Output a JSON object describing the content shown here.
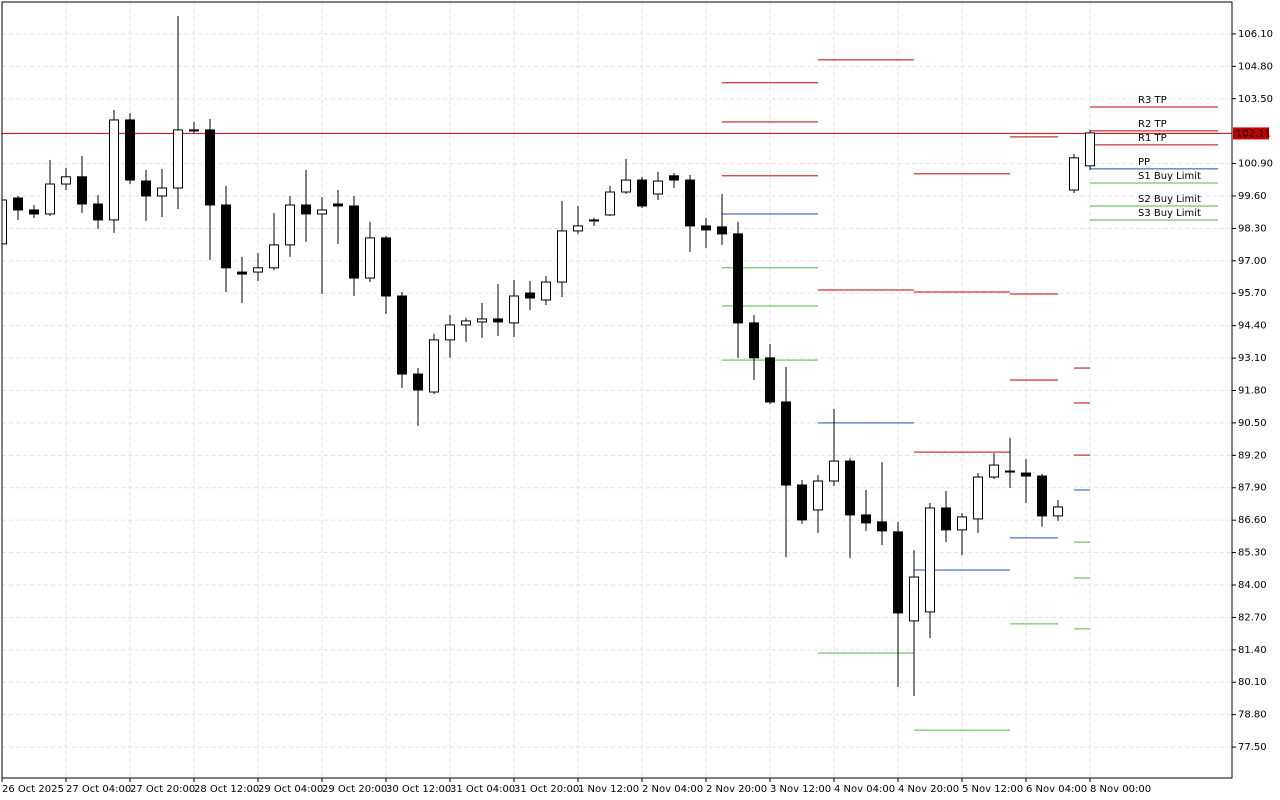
{
  "chart_data": {
    "type": "candlestick",
    "categories": [
      "26 Oct 2025",
      null,
      null,
      null,
      "27 Oct 04:00",
      null,
      null,
      null,
      "27 Oct 20:00",
      null,
      null,
      null,
      "28 Oct 12:00",
      null,
      null,
      null,
      "29 Oct 04:00",
      null,
      null,
      null,
      "29 Oct 20:00",
      null,
      null,
      null,
      "30 Oct 12:00",
      null,
      null,
      null,
      "31 Oct 04:00",
      null,
      null,
      null,
      "31 Oct 20:00",
      null,
      null,
      null,
      "1 Nov 12:00",
      null,
      null,
      null,
      "2 Nov 04:00",
      null,
      null,
      null,
      "2 Nov 20:00",
      null,
      null,
      null,
      "3 Nov 12:00",
      null,
      null,
      null,
      "4 Nov 04:00",
      null,
      null,
      null,
      "4 Nov 20:00",
      null,
      null,
      null,
      "5 Nov 12:00",
      null,
      null,
      null,
      "6 Nov 04:00",
      null,
      null,
      null,
      "8 Nov 00:00"
    ],
    "open": [
      97.68,
      99.52,
      99.04,
      98.88,
      100.08,
      100.37,
      99.28,
      98.64,
      102.65,
      100.2,
      99.6,
      99.92,
      102.21,
      102.25,
      99.24,
      96.55,
      96.55,
      96.72,
      97.64,
      99.24,
      98.88,
      99.28,
      99.2,
      96.31,
      97.92,
      95.59,
      92.46,
      91.74,
      93.83,
      94.43,
      94.55,
      94.67,
      94.51,
      95.71,
      95.43,
      96.15,
      98.2,
      98.6,
      98.84,
      99.76,
      100.24,
      99.68,
      100.41,
      100.24,
      98.4,
      98.36,
      98.08,
      94.51,
      93.11,
      91.34,
      88.01,
      87.01,
      88.17,
      88.97,
      86.81,
      86.53,
      86.13,
      82.56,
      82.92,
      87.09,
      86.21,
      86.65,
      88.33,
      88.53,
      88.49,
      88.37,
      86.77,
      99.84,
      100.81
    ],
    "high": [
      99.52,
      99.6,
      99.24,
      101.05,
      100.73,
      101.21,
      99.64,
      103.05,
      102.93,
      100.65,
      100.69,
      106.82,
      102.57,
      102.69,
      100.0,
      97.16,
      97.32,
      98.92,
      99.6,
      100.65,
      99.56,
      99.84,
      99.6,
      98.56,
      98.0,
      95.75,
      92.7,
      94.07,
      94.83,
      94.71,
      95.31,
      96.07,
      96.23,
      96.19,
      96.39,
      99.4,
      99.2,
      98.72,
      100.0,
      101.09,
      100.37,
      100.57,
      100.52,
      100.44,
      98.72,
      99.68,
      98.56,
      94.83,
      93.67,
      92.74,
      88.21,
      88.41,
      91.06,
      89.09,
      87.81,
      88.93,
      86.53,
      85.4,
      87.29,
      87.77,
      86.89,
      88.49,
      89.29,
      89.9,
      89.05,
      88.45,
      87.41,
      101.29,
      102.25
    ],
    "low": [
      97.6,
      98.64,
      98.72,
      98.8,
      99.84,
      98.92,
      98.28,
      98.12,
      100.08,
      98.6,
      98.76,
      99.08,
      102.13,
      97.04,
      95.75,
      95.31,
      96.19,
      96.63,
      97.16,
      97.76,
      95.67,
      97.68,
      95.59,
      96.15,
      94.87,
      91.9,
      90.38,
      91.66,
      93.11,
      93.75,
      93.91,
      93.99,
      93.95,
      95.03,
      95.23,
      95.55,
      98.08,
      98.4,
      98.8,
      99.68,
      99.12,
      99.44,
      99.92,
      97.36,
      97.52,
      97.64,
      93.11,
      92.22,
      91.26,
      85.12,
      86.45,
      86.09,
      87.97,
      85.08,
      86.17,
      85.6,
      79.91,
      79.55,
      81.87,
      85.72,
      85.2,
      86.09,
      88.25,
      87.89,
      87.29,
      86.33,
      86.57,
      99.72,
      100.65
    ],
    "close": [
      99.44,
      99.04,
      98.88,
      100.08,
      100.37,
      99.28,
      98.64,
      102.65,
      100.24,
      99.6,
      99.92,
      102.25,
      102.25,
      99.24,
      96.72,
      96.47,
      96.72,
      97.64,
      99.24,
      98.88,
      99.04,
      99.2,
      96.31,
      97.92,
      95.59,
      92.46,
      91.82,
      93.83,
      94.43,
      94.59,
      94.67,
      94.55,
      95.59,
      95.51,
      96.15,
      98.2,
      98.4,
      98.64,
      99.76,
      100.24,
      99.2,
      100.2,
      100.24,
      98.4,
      98.24,
      98.08,
      94.51,
      93.11,
      91.34,
      88.01,
      86.61,
      88.17,
      88.97,
      86.81,
      86.49,
      86.17,
      82.88,
      84.32,
      87.09,
      86.21,
      86.73,
      88.33,
      88.81,
      88.57,
      88.37,
      86.77,
      87.13,
      101.13,
      102.13
    ],
    "up_color": "#ffffff",
    "down_color": "#000000",
    "ylim": [
      76.26,
      107.38
    ],
    "yticks": [
      {
        "value": 106.1,
        "label": "106.10"
      },
      {
        "value": 104.8,
        "label": "104.80"
      },
      {
        "value": 103.5,
        "label": "103.50"
      },
      {
        "value": 100.9,
        "label": "100.90"
      },
      {
        "value": 99.6,
        "label": "99.60"
      },
      {
        "value": 98.3,
        "label": "98.30"
      },
      {
        "value": 97,
        "label": "97.00"
      },
      {
        "value": 95.7,
        "label": "95.70"
      },
      {
        "value": 94.4,
        "label": "94.40"
      },
      {
        "value": 93.1,
        "label": "93.10"
      },
      {
        "value": 91.8,
        "label": "91.80"
      },
      {
        "value": 90.5,
        "label": "90.50"
      },
      {
        "value": 89.2,
        "label": "89.20"
      },
      {
        "value": 87.9,
        "label": "87.90"
      },
      {
        "value": 86.6,
        "label": "86.60"
      },
      {
        "value": 85.3,
        "label": "85.30"
      },
      {
        "value": 84,
        "label": "84.00"
      },
      {
        "value": 82.7,
        "label": "82.70"
      },
      {
        "value": 81.4,
        "label": "81.40"
      },
      {
        "value": 80.1,
        "label": "80.10"
      },
      {
        "value": 78.8,
        "label": "78.80"
      },
      {
        "value": 77.5,
        "label": "77.50"
      }
    ],
    "grid": true,
    "last_price": 102.11,
    "last_price_color": "#c00000",
    "levels": [
      {
        "name": "R3 TP",
        "color": "#c00000",
        "values": [
          null,
          null,
          null,
          null,
          null,
          null,
          null,
          null,
          null,
          null,
          null,
          null,
          null,
          null,
          null,
          null,
          null,
          null,
          null,
          null,
          null,
          null,
          null,
          null,
          null,
          null,
          null,
          null,
          null,
          null,
          null,
          null,
          null,
          null,
          null,
          null,
          null,
          null,
          null,
          null,
          null,
          null,
          null,
          null,
          null,
          104.14,
          104.14,
          104.14,
          104.14,
          104.14,
          104.14,
          null,
          null,
          null,
          null,
          null,
          null,
          100.49,
          100.49,
          100.49,
          100.49,
          100.49,
          100.49,
          101.97,
          101.97,
          101.97,
          null,
          92.7,
          103.17
        ]
      },
      {
        "name": "R2 TP",
        "color": "#c00000",
        "values": [
          null,
          null,
          null,
          null,
          null,
          null,
          null,
          null,
          null,
          null,
          null,
          null,
          null,
          null,
          null,
          null,
          null,
          null,
          null,
          null,
          null,
          null,
          null,
          null,
          null,
          null,
          null,
          null,
          null,
          null,
          null,
          null,
          null,
          null,
          null,
          null,
          null,
          null,
          null,
          null,
          null,
          null,
          null,
          null,
          null,
          102.57,
          102.57,
          102.57,
          102.57,
          102.57,
          102.57,
          105.06,
          105.06,
          105.06,
          105.06,
          105.06,
          105.06,
          95.75,
          95.75,
          95.75,
          95.75,
          95.75,
          95.75,
          95.67,
          95.67,
          95.67,
          null,
          91.3,
          102.21
        ]
      },
      {
        "name": "R1 TP",
        "color": "#c00000",
        "values": [
          null,
          null,
          null,
          null,
          null,
          null,
          null,
          null,
          null,
          null,
          null,
          null,
          null,
          null,
          null,
          null,
          null,
          null,
          null,
          null,
          null,
          null,
          null,
          null,
          null,
          null,
          null,
          null,
          null,
          null,
          null,
          null,
          null,
          null,
          null,
          null,
          null,
          null,
          null,
          null,
          null,
          null,
          null,
          null,
          null,
          100.41,
          100.41,
          100.41,
          100.41,
          100.41,
          100.41,
          95.83,
          95.83,
          95.83,
          95.83,
          95.83,
          95.83,
          89.33,
          89.33,
          89.33,
          89.33,
          89.33,
          89.33,
          92.22,
          92.22,
          92.22,
          null,
          89.21,
          101.65
        ]
      },
      {
        "name": "PP",
        "color": "#1f4fb4",
        "values": [
          null,
          null,
          null,
          null,
          null,
          null,
          null,
          null,
          null,
          null,
          null,
          null,
          null,
          null,
          null,
          null,
          null,
          null,
          null,
          null,
          null,
          null,
          null,
          null,
          null,
          null,
          null,
          null,
          null,
          null,
          null,
          null,
          null,
          null,
          null,
          null,
          null,
          null,
          null,
          null,
          null,
          null,
          null,
          null,
          null,
          98.88,
          98.88,
          98.88,
          98.88,
          98.88,
          98.88,
          90.5,
          90.5,
          90.5,
          90.5,
          90.5,
          90.5,
          84.6,
          84.6,
          84.6,
          84.6,
          84.6,
          84.6,
          85.89,
          85.89,
          85.89,
          null,
          87.81,
          100.69
        ]
      },
      {
        "name": "S1 Buy Limit",
        "color": "#4cbb3c",
        "values": [
          null,
          null,
          null,
          null,
          null,
          null,
          null,
          null,
          null,
          null,
          null,
          null,
          null,
          null,
          null,
          null,
          null,
          null,
          null,
          null,
          null,
          null,
          null,
          null,
          null,
          null,
          null,
          null,
          null,
          null,
          null,
          null,
          null,
          null,
          null,
          null,
          null,
          null,
          null,
          null,
          null,
          null,
          null,
          null,
          null,
          96.72,
          96.72,
          96.72,
          96.72,
          96.72,
          96.72,
          81.27,
          81.27,
          81.27,
          81.27,
          81.27,
          81.27,
          78.18,
          78.18,
          78.18,
          78.18,
          78.18,
          78.18,
          82.44,
          82.44,
          82.44,
          null,
          85.72,
          100.12
        ]
      },
      {
        "name": "S2 Buy Limit",
        "color": "#4cbb3c",
        "values": [
          null,
          null,
          null,
          null,
          null,
          null,
          null,
          null,
          null,
          null,
          null,
          null,
          null,
          null,
          null,
          null,
          null,
          null,
          null,
          null,
          null,
          null,
          null,
          null,
          null,
          null,
          null,
          null,
          null,
          null,
          null,
          null,
          null,
          null,
          null,
          null,
          null,
          null,
          null,
          null,
          null,
          null,
          null,
          null,
          null,
          95.19,
          95.19,
          95.19,
          95.19,
          95.19,
          95.19,
          null,
          null,
          null,
          null,
          null,
          null,
          null,
          null,
          null,
          null,
          null,
          null,
          null,
          null,
          null,
          null,
          84.28,
          99.2
        ]
      },
      {
        "name": "S3 Buy Limit",
        "color": "#4cbb3c",
        "values": [
          null,
          null,
          null,
          null,
          null,
          null,
          null,
          null,
          null,
          null,
          null,
          null,
          null,
          null,
          null,
          null,
          null,
          null,
          null,
          null,
          null,
          null,
          null,
          null,
          null,
          null,
          null,
          null,
          null,
          null,
          null,
          null,
          null,
          null,
          null,
          null,
          null,
          null,
          null,
          null,
          null,
          null,
          null,
          null,
          null,
          93.02,
          93.02,
          93.02,
          93.02,
          93.02,
          93.02,
          null,
          null,
          null,
          null,
          null,
          null,
          null,
          null,
          null,
          null,
          null,
          null,
          null,
          null,
          null,
          null,
          82.24,
          98.64
        ]
      }
    ]
  }
}
